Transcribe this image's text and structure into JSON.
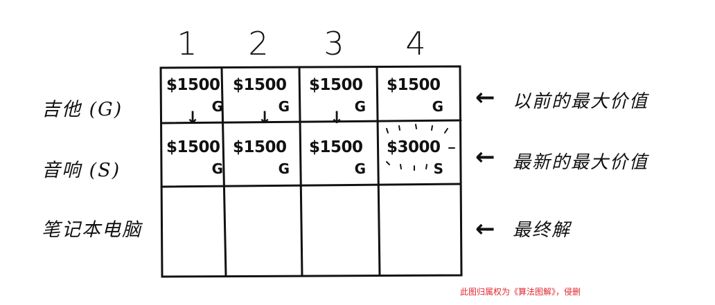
{
  "columns": [
    "1",
    "2",
    "3",
    "4"
  ],
  "rows": [
    {
      "label": "吉他 (G)"
    },
    {
      "label": "音响 (S)"
    },
    {
      "label": "笔记本电脑"
    }
  ],
  "cells": [
    [
      {
        "price": "$1500",
        "item": "G"
      },
      {
        "price": "$1500",
        "item": "G"
      },
      {
        "price": "$1500",
        "item": "G"
      },
      {
        "price": "$1500",
        "item": "G"
      }
    ],
    [
      {
        "price": "$1500",
        "item": "G"
      },
      {
        "price": "$1500",
        "item": "G"
      },
      {
        "price": "$1500",
        "item": "G"
      },
      {
        "price": "$3000",
        "item": "S"
      }
    ],
    [
      {
        "price": "",
        "item": ""
      },
      {
        "price": "",
        "item": ""
      },
      {
        "price": "",
        "item": ""
      },
      {
        "price": "",
        "item": ""
      }
    ]
  ],
  "annotations": [
    {
      "text": "以前的最大价值"
    },
    {
      "text": "最新的最大价值"
    },
    {
      "text": "最终解"
    }
  ],
  "watermark": "此图归属权为《算法图解》，侵删"
}
